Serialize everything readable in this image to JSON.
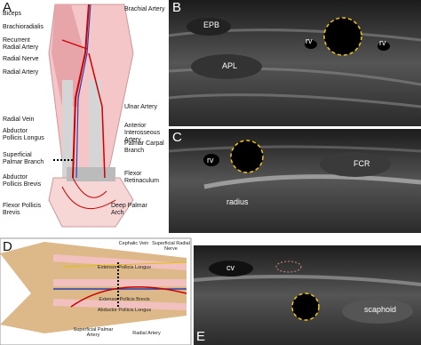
{
  "panels": {
    "A": {
      "letter": "A",
      "left_labels": [
        "Biceps",
        "Brachioradialis",
        "Recurrent Radial Artery",
        "Radial Nerve",
        "Radial Artery",
        "Radial Vein",
        "Abductor Pollicis Longus",
        "Superficial Palmar Branch",
        "Abductor Pollicis Brevis",
        "Flexor Pollicis Brevis"
      ],
      "right_labels": [
        "Brachial Artery",
        "Ulnar Artery",
        "Anterior Interosseous Artery",
        "Palmar Carpal Branch",
        "Flexor Retinaculum",
        "Deep Palmar Arch"
      ]
    },
    "B": {
      "letter": "B",
      "labels": [
        "EPB",
        "rv",
        "rv",
        "APL"
      ]
    },
    "C": {
      "letter": "C",
      "labels": [
        "rv",
        "FCR",
        "radius"
      ]
    },
    "D": {
      "letter": "D",
      "labels": [
        "Cephalic Vein",
        "Superficial Radial Nerve",
        "Extensor Pollicis Longus",
        "Extensor Pollicis Brevis",
        "Abductor Pollicis Longus",
        "Superficial Palmar Artery",
        "Radial Artery"
      ]
    },
    "E": {
      "letter": "E",
      "labels": [
        "cv",
        "scaphoid"
      ]
    }
  }
}
